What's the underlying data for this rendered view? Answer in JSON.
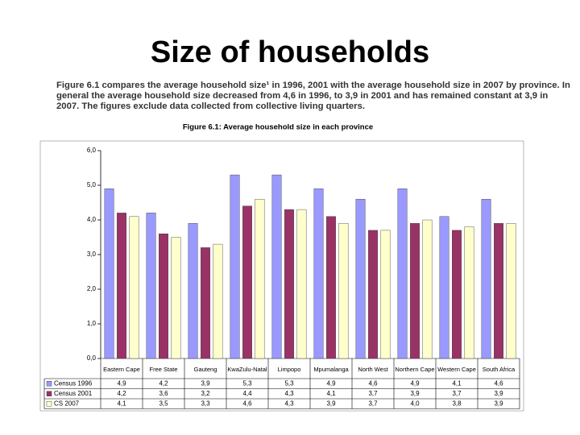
{
  "header": {
    "title": "Size of households",
    "text": "Figure 6.1 compares the average household size¹ in 1996, 2001 with the average household size in 2007 by province. In general the average household size decreased from 4,6 in 1996, to 3,9 in 2001 and has remained constant at 3,9 in 2007. The figures exclude data collected from collective living quarters."
  },
  "chart_data": {
    "type": "bar",
    "title": "Figure 6.1: Average household size in each province",
    "categories": [
      "Eastern Cape",
      "Free State",
      "Gauteng",
      "KwaZulu-Natal",
      "Limpopo",
      "Mpumalanga",
      "North West",
      "Northern Cape",
      "Western Cape",
      "South Africa"
    ],
    "series": [
      {
        "name": "Census 1996",
        "color": "#9999ff",
        "values": [
          4.9,
          4.2,
          3.9,
          5.3,
          5.3,
          4.9,
          4.6,
          4.9,
          4.1,
          4.6
        ],
        "value_labels": [
          "4,9",
          "4,2",
          "3,9",
          "5,3",
          "5,3",
          "4,9",
          "4,6",
          "4,9",
          "4,1",
          "4,6"
        ]
      },
      {
        "name": "Census 2001",
        "color": "#993366",
        "values": [
          4.2,
          3.6,
          3.2,
          4.4,
          4.3,
          4.1,
          3.7,
          3.9,
          3.7,
          3.9
        ],
        "value_labels": [
          "4,2",
          "3,6",
          "3,2",
          "4,4",
          "4,3",
          "4,1",
          "3,7",
          "3,9",
          "3,7",
          "3,9"
        ]
      },
      {
        "name": "CS 2007",
        "color": "#ffffcc",
        "values": [
          4.1,
          3.5,
          3.3,
          4.6,
          4.3,
          3.9,
          3.7,
          4.0,
          3.8,
          3.9
        ],
        "value_labels": [
          "4,1",
          "3,5",
          "3,3",
          "4,6",
          "4,3",
          "3,9",
          "3,7",
          "4,0",
          "3,8",
          "3,9"
        ]
      }
    ],
    "ylim": [
      0,
      6
    ],
    "yticks": [
      {
        "value": 0,
        "label": "0,0"
      },
      {
        "value": 1,
        "label": "1,0"
      },
      {
        "value": 2,
        "label": "2,0"
      },
      {
        "value": 3,
        "label": "3,0"
      },
      {
        "value": 4,
        "label": "4,0"
      },
      {
        "value": 5,
        "label": "5,0"
      },
      {
        "value": 6,
        "label": "6,0"
      }
    ],
    "grid": false
  }
}
